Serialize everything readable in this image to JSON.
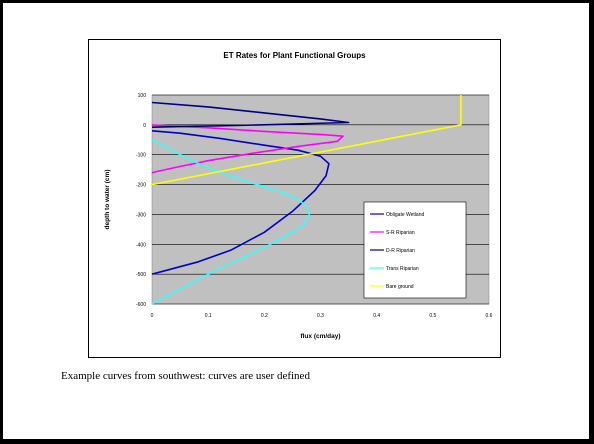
{
  "caption": "Example curves from southwest: curves are user defined",
  "chart_data": {
    "type": "line",
    "title": "ET Rates for Plant Functional Groups",
    "xlabel": "flux (cm/day)",
    "ylabel": "depth to water (cm)",
    "xlim": [
      0,
      0.6
    ],
    "ylim": [
      -600,
      100
    ],
    "x_ticks": [
      0,
      0.1,
      0.2,
      0.3,
      0.4,
      0.5,
      0.6
    ],
    "y_ticks": [
      -600,
      -500,
      -400,
      -300,
      -200,
      -100,
      0,
      100
    ],
    "grid": "horizontal",
    "plot_background": "#c0c0c0",
    "legend_position": "right",
    "series": [
      {
        "name": "Obligate Wetland",
        "color": "#0000cc",
        "points": [
          [
            0,
            -20
          ],
          [
            0.05,
            -28
          ],
          [
            0.12,
            -45
          ],
          [
            0.2,
            -68
          ],
          [
            0.26,
            -85
          ],
          [
            0.3,
            -105
          ],
          [
            0.315,
            -130
          ],
          [
            0.31,
            -170
          ],
          [
            0.29,
            -220
          ],
          [
            0.25,
            -290
          ],
          [
            0.2,
            -360
          ],
          [
            0.14,
            -420
          ],
          [
            0.08,
            -460
          ],
          [
            0.02,
            -490
          ],
          [
            0,
            -500
          ]
        ]
      },
      {
        "name": "S-R Riparian",
        "color": "#ff00ff",
        "points": [
          [
            0,
            0
          ],
          [
            0.1,
            -10
          ],
          [
            0.2,
            -22
          ],
          [
            0.3,
            -32
          ],
          [
            0.34,
            -38
          ],
          [
            0.33,
            -55
          ],
          [
            0.26,
            -72
          ],
          [
            0.18,
            -95
          ],
          [
            0.1,
            -120
          ],
          [
            0.04,
            -143
          ],
          [
            0,
            -160
          ]
        ]
      },
      {
        "name": "D-R Riparian",
        "color": "#000080",
        "points": [
          [
            0,
            75
          ],
          [
            0.1,
            60
          ],
          [
            0.2,
            40
          ],
          [
            0.3,
            20
          ],
          [
            0.35,
            8
          ],
          [
            0.25,
            3
          ],
          [
            0.15,
            -2
          ],
          [
            0.05,
            -6
          ],
          [
            0,
            -8
          ]
        ]
      },
      {
        "name": "Trans Riparian",
        "color": "#33ffff",
        "points": [
          [
            0,
            -50
          ],
          [
            0.05,
            -100
          ],
          [
            0.1,
            -145
          ],
          [
            0.17,
            -190
          ],
          [
            0.23,
            -225
          ],
          [
            0.26,
            -250
          ],
          [
            0.275,
            -272
          ],
          [
            0.28,
            -300
          ],
          [
            0.27,
            -335
          ],
          [
            0.24,
            -370
          ],
          [
            0.18,
            -430
          ],
          [
            0.12,
            -480
          ],
          [
            0.06,
            -540
          ],
          [
            0,
            -600
          ]
        ]
      },
      {
        "name": "Bare ground",
        "color": "#ffff00",
        "points": [
          [
            0,
            -200
          ],
          [
            0.55,
            0
          ],
          [
            0.55,
            100
          ]
        ]
      }
    ]
  }
}
